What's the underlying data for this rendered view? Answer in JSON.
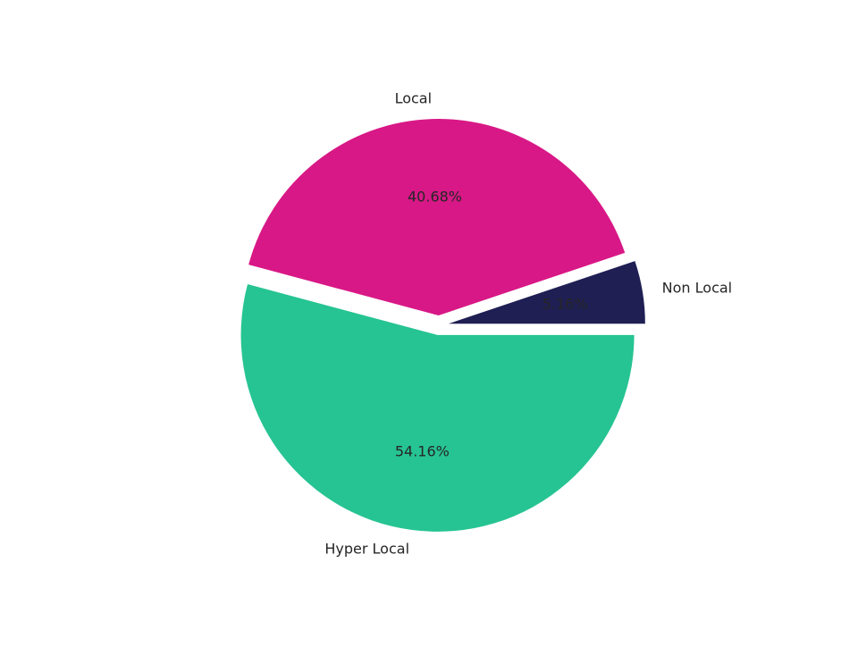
{
  "chart_data": {
    "type": "pie",
    "categories": [
      "Non Local",
      "Local",
      "Hyper Local"
    ],
    "values": [
      5.16,
      40.68,
      54.16
    ],
    "value_labels": [
      "5.16%",
      "40.68%",
      "54.16%"
    ],
    "colors": [
      "#1f1f54",
      "#d81886",
      "#26c492"
    ]
  }
}
